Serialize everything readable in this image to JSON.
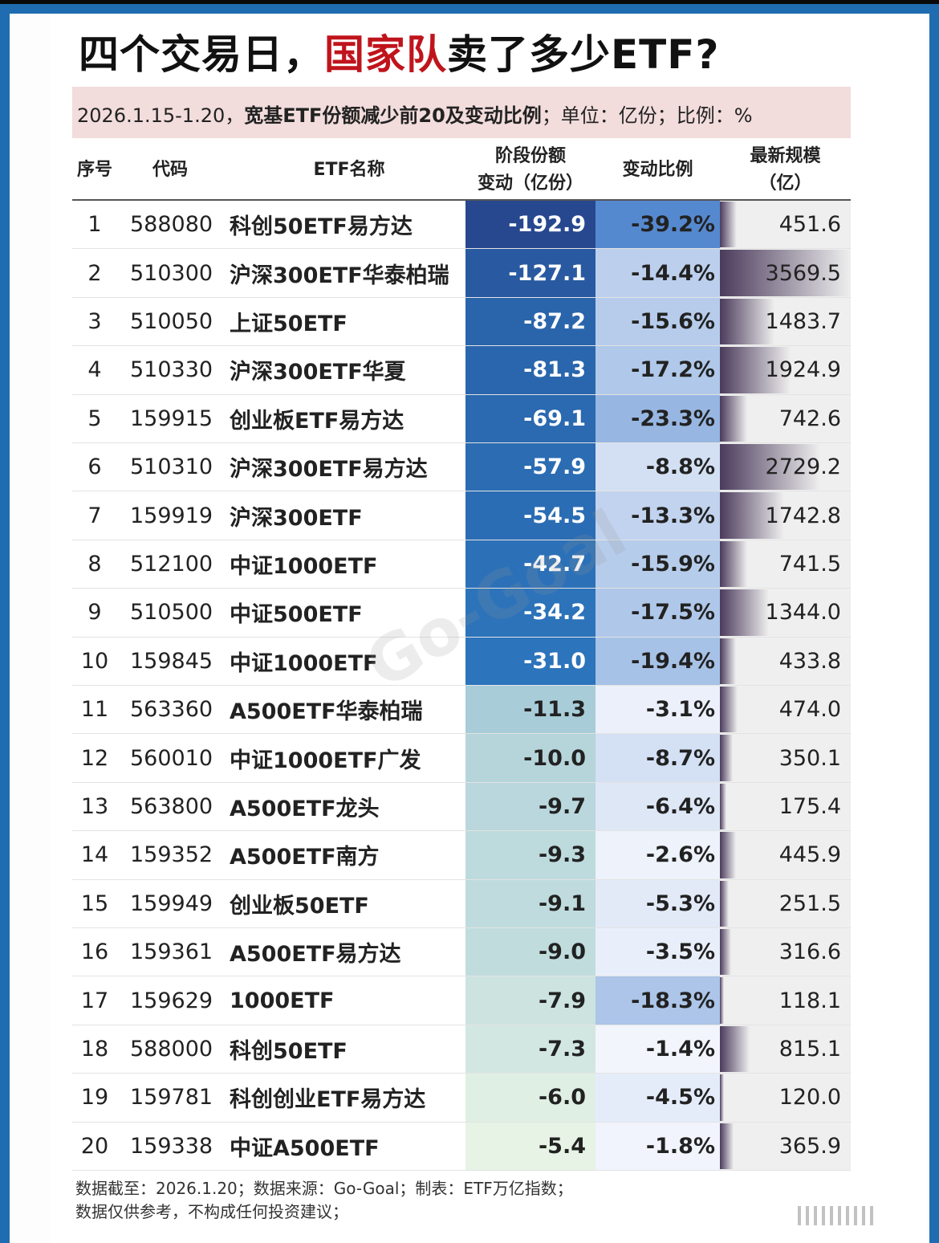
{
  "title": {
    "part1": "四个交易日，",
    "highlight": "国家队",
    "part2": "卖了多少ETF?",
    "highlight_color": "#c0141c"
  },
  "subtitle": {
    "period": "2026.1.15-1.20，",
    "desc": "宽基ETF份额减少前20及变动比例",
    "units": "；单位：亿份；比例：%"
  },
  "watermark": "Go-Goal",
  "chart_data": {
    "type": "table",
    "columns": [
      "序号",
      "代码",
      "ETF名称",
      "阶段份额变动（亿份）",
      "变动比例",
      "最新规模（亿）"
    ],
    "header": {
      "seq": "序号",
      "code": "代码",
      "name": "ETF名称",
      "chg_l1": "阶段份额",
      "chg_l2": "变动（亿份）",
      "ratio": "变动比例",
      "scale_l1": "最新规模",
      "scale_l2": "(亿)"
    },
    "rows": [
      {
        "seq": "1",
        "code": "588080",
        "name": "科创50ETF易方达",
        "chg": "-192.9",
        "ratio": "-39.2%",
        "scale": "451.6"
      },
      {
        "seq": "2",
        "code": "510300",
        "name": "沪深300ETF华泰柏瑞",
        "chg": "-127.1",
        "ratio": "-14.4%",
        "scale": "3569.5"
      },
      {
        "seq": "3",
        "code": "510050",
        "name": "上证50ETF",
        "chg": "-87.2",
        "ratio": "-15.6%",
        "scale": "1483.7"
      },
      {
        "seq": "4",
        "code": "510330",
        "name": "沪深300ETF华夏",
        "chg": "-81.3",
        "ratio": "-17.2%",
        "scale": "1924.9"
      },
      {
        "seq": "5",
        "code": "159915",
        "name": "创业板ETF易方达",
        "chg": "-69.1",
        "ratio": "-23.3%",
        "scale": "742.6"
      },
      {
        "seq": "6",
        "code": "510310",
        "name": "沪深300ETF易方达",
        "chg": "-57.9",
        "ratio": "-8.8%",
        "scale": "2729.2"
      },
      {
        "seq": "7",
        "code": "159919",
        "name": "沪深300ETF",
        "chg": "-54.5",
        "ratio": "-13.3%",
        "scale": "1742.8"
      },
      {
        "seq": "8",
        "code": "512100",
        "name": "中证1000ETF",
        "chg": "-42.7",
        "ratio": "-15.9%",
        "scale": "741.5"
      },
      {
        "seq": "9",
        "code": "510500",
        "name": "中证500ETF",
        "chg": "-34.2",
        "ratio": "-17.5%",
        "scale": "1344.0"
      },
      {
        "seq": "10",
        "code": "159845",
        "name": "中证1000ETF",
        "chg": "-31.0",
        "ratio": "-19.4%",
        "scale": "433.8"
      },
      {
        "seq": "11",
        "code": "563360",
        "name": "A500ETF华泰柏瑞",
        "chg": "-11.3",
        "ratio": "-3.1%",
        "scale": "474.0"
      },
      {
        "seq": "12",
        "code": "560010",
        "name": "中证1000ETF广发",
        "chg": "-10.0",
        "ratio": "-8.7%",
        "scale": "350.1"
      },
      {
        "seq": "13",
        "code": "563800",
        "name": "A500ETF龙头",
        "chg": "-9.7",
        "ratio": "-6.4%",
        "scale": "175.4"
      },
      {
        "seq": "14",
        "code": "159352",
        "name": "A500ETF南方",
        "chg": "-9.3",
        "ratio": "-2.6%",
        "scale": "445.9"
      },
      {
        "seq": "15",
        "code": "159949",
        "name": "创业板50ETF",
        "chg": "-9.1",
        "ratio": "-5.3%",
        "scale": "251.5"
      },
      {
        "seq": "16",
        "code": "159361",
        "name": "A500ETF易方达",
        "chg": "-9.0",
        "ratio": "-3.5%",
        "scale": "316.6"
      },
      {
        "seq": "17",
        "code": "159629",
        "name": "1000ETF",
        "chg": "-7.9",
        "ratio": "-18.3%",
        "scale": "118.1"
      },
      {
        "seq": "18",
        "code": "588000",
        "name": "科创50ETF",
        "chg": "-7.3",
        "ratio": "-1.4%",
        "scale": "815.1"
      },
      {
        "seq": "19",
        "code": "159781",
        "name": "科创创业ETF易方达",
        "chg": "-6.0",
        "ratio": "-4.5%",
        "scale": "120.0"
      },
      {
        "seq": "20",
        "code": "159338",
        "name": "中证A500ETF",
        "chg": "-5.4",
        "ratio": "-1.8%",
        "scale": "365.9"
      }
    ],
    "colors": {
      "chg_dark": "#27488f",
      "chg_blue": "#2c74bb",
      "chg_light": "#a6cbd8",
      "chg_lightest": "#eaf6e6",
      "ratio_max": "#5589cf",
      "ratio_min": "#f8f9fe",
      "scale_bar": "#4b3b5c"
    }
  },
  "footer": {
    "line1": "数据截至：2026.1.20；数据来源：Go-Goal；制表：ETF万亿指数；",
    "line2": "数据仅供参考，不构成任何投资建议；"
  }
}
